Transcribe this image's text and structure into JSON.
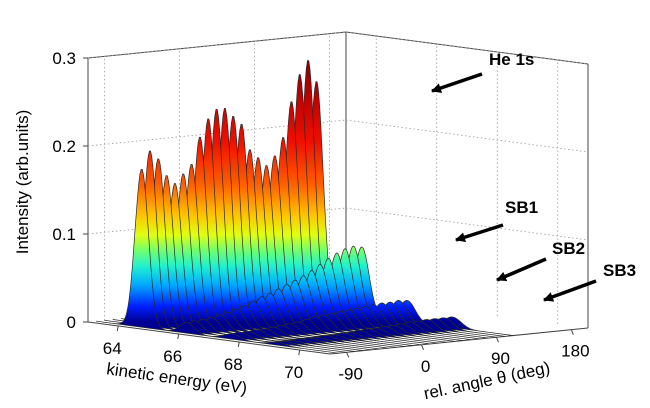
{
  "chart_data": {
    "type": "waterfall-3d",
    "title": "",
    "xlabel": "kinetic energy (eV)",
    "ylabel": "rel. angle θ (deg)",
    "zlabel": "Intensity (arb.units)",
    "x_ticks": [
      "64",
      "66",
      "68",
      "70"
    ],
    "y_ticks": [
      "-90",
      "0",
      "90",
      "180"
    ],
    "z_ticks": [
      "0",
      "0.1",
      "0.2",
      "0.3"
    ],
    "xlim": [
      63,
      71
    ],
    "ylim": [
      -110,
      200
    ],
    "zlim": [
      0,
      0.3
    ],
    "grid": true,
    "colormap": "jet",
    "curve_count": 22,
    "peaks": [
      {
        "name": "He 1s",
        "label": "He 1s",
        "position_eV": 64.5
      },
      {
        "name": "SB1",
        "label": "SB1",
        "position_eV": 66.0
      },
      {
        "name": "SB2",
        "label": "SB2",
        "position_eV": 67.5
      },
      {
        "name": "SB3",
        "label": "SB3",
        "position_eV": 69.0
      }
    ],
    "series": [
      {
        "angle": -100,
        "values": [
          0.18,
          0.012,
          0.006,
          0.003
        ]
      },
      {
        "angle": -90,
        "values": [
          0.2,
          0.013,
          0.007,
          0.003
        ]
      },
      {
        "angle": -80,
        "values": [
          0.19,
          0.014,
          0.007,
          0.003
        ]
      },
      {
        "angle": -70,
        "values": [
          0.17,
          0.015,
          0.008,
          0.004
        ]
      },
      {
        "angle": -60,
        "values": [
          0.16,
          0.017,
          0.008,
          0.004
        ]
      },
      {
        "angle": -50,
        "values": [
          0.17,
          0.019,
          0.009,
          0.004
        ]
      },
      {
        "angle": -40,
        "values": [
          0.18,
          0.022,
          0.01,
          0.005
        ]
      },
      {
        "angle": -30,
        "values": [
          0.21,
          0.025,
          0.011,
          0.005
        ]
      },
      {
        "angle": -20,
        "values": [
          0.23,
          0.029,
          0.012,
          0.006
        ]
      },
      {
        "angle": -10,
        "values": [
          0.24,
          0.033,
          0.014,
          0.006
        ]
      },
      {
        "angle": 0,
        "values": [
          0.24,
          0.036,
          0.016,
          0.007
        ]
      },
      {
        "angle": 10,
        "values": [
          0.23,
          0.04,
          0.017,
          0.008
        ]
      },
      {
        "angle": 20,
        "values": [
          0.22,
          0.044,
          0.018,
          0.008
        ]
      },
      {
        "angle": 30,
        "values": [
          0.19,
          0.048,
          0.019,
          0.009
        ]
      },
      {
        "angle": 40,
        "values": [
          0.18,
          0.052,
          0.02,
          0.009
        ]
      },
      {
        "angle": 50,
        "values": [
          0.17,
          0.057,
          0.021,
          0.01
        ]
      },
      {
        "angle": 60,
        "values": [
          0.18,
          0.063,
          0.022,
          0.011
        ]
      },
      {
        "angle": 70,
        "values": [
          0.2,
          0.069,
          0.023,
          0.011
        ]
      },
      {
        "angle": 80,
        "values": [
          0.24,
          0.074,
          0.024,
          0.012
        ]
      },
      {
        "angle": 90,
        "values": [
          0.27,
          0.078,
          0.024,
          0.012
        ]
      },
      {
        "angle": 100,
        "values": [
          0.285,
          0.08,
          0.025,
          0.012
        ]
      },
      {
        "angle": 110,
        "values": [
          0.26,
          0.078,
          0.024,
          0.012
        ]
      }
    ],
    "annotations": [
      "He 1s",
      "SB1",
      "SB2",
      "SB3"
    ]
  }
}
